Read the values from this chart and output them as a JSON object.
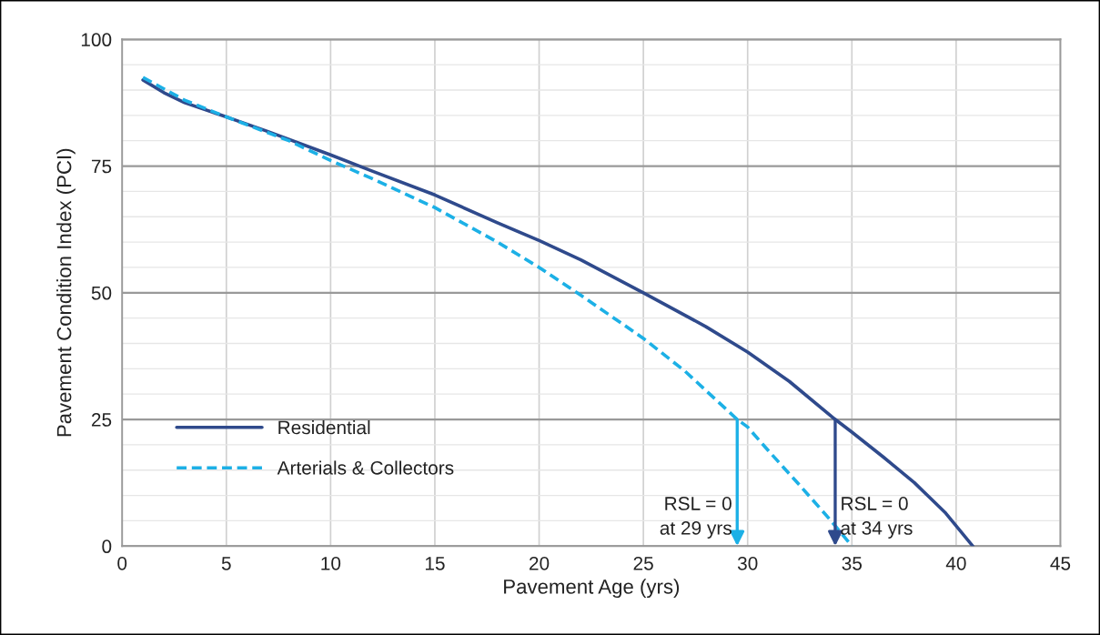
{
  "chart_data": {
    "type": "line",
    "xlabel": "Pavement Age (yrs)",
    "ylabel": "Pavement Condition Index (PCI)",
    "x": [
      1,
      2,
      3,
      5,
      7,
      10,
      12,
      15,
      18,
      20,
      22,
      25,
      28,
      30,
      32,
      34.2,
      35,
      36.5,
      38,
      39.5,
      40.8
    ],
    "series": [
      {
        "name": "Residential",
        "color": "#2f4a8c",
        "line_style": "solid",
        "values": [
          92,
          89.5,
          87.5,
          84.7,
          81.8,
          77.2,
          74,
          69.3,
          63.8,
          60.3,
          56.5,
          50,
          43.3,
          38.3,
          32.5,
          25,
          22.5,
          17.6,
          12.5,
          6.5,
          0
        ]
      },
      {
        "name": "Arterials & Collectors",
        "color": "#1cb0e6",
        "line_style": "dashed",
        "x": [
          1,
          3,
          5,
          8,
          10,
          12,
          15,
          18,
          20,
          22,
          25,
          27,
          29.5,
          30,
          31,
          32.5,
          34,
          35
        ],
        "values": [
          92.5,
          88,
          84.7,
          80,
          76.1,
          72.5,
          66.8,
          60,
          55,
          49.5,
          41,
          34.5,
          25,
          23.5,
          18.8,
          12,
          5,
          0
        ]
      }
    ],
    "xlim": [
      0,
      45
    ],
    "xticks": [
      0,
      5,
      10,
      15,
      20,
      25,
      30,
      35,
      40,
      45
    ],
    "ylim": [
      0,
      100
    ],
    "yticks": [
      0,
      {
        "value": 5,
        "label": null
      },
      {
        "value": 10,
        "label": null
      },
      {
        "value": 15,
        "label": null
      },
      {
        "value": 20,
        "label": null
      },
      25,
      {
        "value": 30,
        "label": null
      },
      {
        "value": 35,
        "label": null
      },
      {
        "value": 40,
        "label": null
      },
      {
        "value": 45,
        "label": null
      },
      50,
      {
        "value": 55,
        "label": null
      },
      {
        "value": 60,
        "label": null
      },
      {
        "value": 65,
        "label": null
      },
      {
        "value": 70,
        "label": null
      },
      75,
      {
        "value": 80,
        "label": null
      },
      {
        "value": 85,
        "label": null
      },
      {
        "value": 90,
        "label": null
      },
      {
        "value": 95,
        "label": null
      },
      100
    ],
    "annotations": [
      {
        "text": "RSL = 0\nat 29 yrs",
        "x": 29.5,
        "y": 25
      },
      {
        "text": "RSL = 0\nat 34 yrs",
        "x": 34.2,
        "y": 25
      }
    ],
    "grid": true,
    "legend": "bottom left",
    "marker": "none"
  }
}
